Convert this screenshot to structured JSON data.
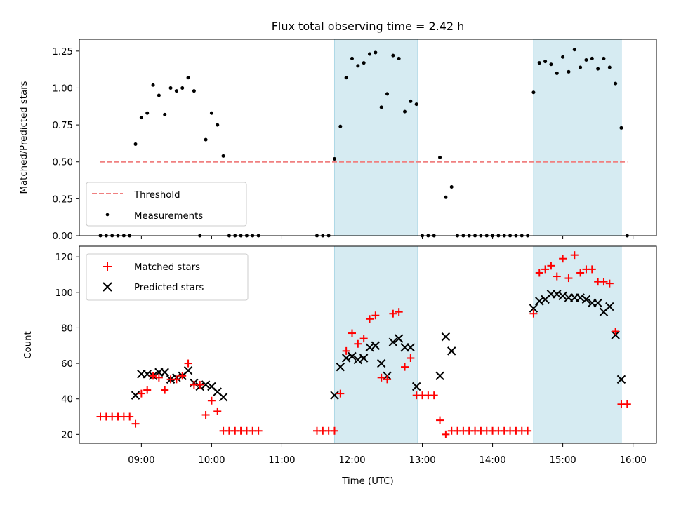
{
  "chart_data": [
    {
      "type": "scatter",
      "title": "Flux total observing time = 2.42 h",
      "xlabel": "",
      "ylabel": "Matched/Predicted stars",
      "xlim": [
        "08:07",
        "16:20"
      ],
      "ylim": [
        0,
        1.33
      ],
      "yticks": [
        0.0,
        0.25,
        0.5,
        0.75,
        1.0,
        1.25
      ],
      "ytick_labels": [
        "0.00",
        "0.25",
        "0.50",
        "0.75",
        "1.00",
        "1.25"
      ],
      "shaded_regions": [
        [
          "11:45",
          "12:56"
        ],
        [
          "14:35",
          "15:50"
        ]
      ],
      "threshold": {
        "name": "Threshold",
        "value": 0.5,
        "x_range": [
          "08:25",
          "15:55"
        ],
        "color": "#f08080",
        "style": "dashed"
      },
      "legend": {
        "position": "lower-left",
        "entries": [
          "Threshold",
          "Measurements"
        ]
      },
      "series": [
        {
          "name": "Measurements",
          "color": "#000000",
          "marker": "dot",
          "points": [
            [
              "08:25",
              0
            ],
            [
              "08:30",
              0
            ],
            [
              "08:35",
              0
            ],
            [
              "08:40",
              0
            ],
            [
              "08:45",
              0
            ],
            [
              "08:50",
              0
            ],
            [
              "08:55",
              0.62
            ],
            [
              "09:00",
              0.8
            ],
            [
              "09:05",
              0.83
            ],
            [
              "09:10",
              1.02
            ],
            [
              "09:15",
              0.95
            ],
            [
              "09:20",
              0.82
            ],
            [
              "09:25",
              1.0
            ],
            [
              "09:30",
              0.98
            ],
            [
              "09:35",
              1.0
            ],
            [
              "09:40",
              1.07
            ],
            [
              "09:45",
              0.98
            ],
            [
              "09:50",
              0
            ],
            [
              "09:55",
              0.65
            ],
            [
              "10:00",
              0.83
            ],
            [
              "10:05",
              0.75
            ],
            [
              "10:10",
              0.54
            ],
            [
              "10:15",
              0
            ],
            [
              "10:20",
              0
            ],
            [
              "10:25",
              0
            ],
            [
              "10:30",
              0
            ],
            [
              "10:35",
              0
            ],
            [
              "10:40",
              0
            ],
            [
              "11:30",
              0
            ],
            [
              "11:35",
              0
            ],
            [
              "11:40",
              0
            ],
            [
              "11:45",
              0.52
            ],
            [
              "11:50",
              0.74
            ],
            [
              "11:55",
              1.07
            ],
            [
              "12:00",
              1.2
            ],
            [
              "12:05",
              1.15
            ],
            [
              "12:10",
              1.17
            ],
            [
              "12:15",
              1.23
            ],
            [
              "12:20",
              1.24
            ],
            [
              "12:25",
              0.87
            ],
            [
              "12:30",
              0.96
            ],
            [
              "12:35",
              1.22
            ],
            [
              "12:40",
              1.2
            ],
            [
              "12:45",
              0.84
            ],
            [
              "12:50",
              0.91
            ],
            [
              "12:55",
              0.89
            ],
            [
              "13:00",
              0
            ],
            [
              "13:05",
              0
            ],
            [
              "13:10",
              0
            ],
            [
              "13:15",
              0.53
            ],
            [
              "13:20",
              0.26
            ],
            [
              "13:25",
              0.33
            ],
            [
              "13:30",
              0
            ],
            [
              "13:35",
              0
            ],
            [
              "13:40",
              0
            ],
            [
              "13:45",
              0
            ],
            [
              "13:50",
              0
            ],
            [
              "13:55",
              0
            ],
            [
              "14:00",
              0
            ],
            [
              "14:05",
              0
            ],
            [
              "14:10",
              0
            ],
            [
              "14:15",
              0
            ],
            [
              "14:20",
              0
            ],
            [
              "14:25",
              0
            ],
            [
              "14:30",
              0
            ],
            [
              "14:35",
              0.97
            ],
            [
              "14:40",
              1.17
            ],
            [
              "14:45",
              1.18
            ],
            [
              "14:50",
              1.16
            ],
            [
              "14:55",
              1.1
            ],
            [
              "15:00",
              1.21
            ],
            [
              "15:05",
              1.11
            ],
            [
              "15:10",
              1.26
            ],
            [
              "15:15",
              1.14
            ],
            [
              "15:20",
              1.19
            ],
            [
              "15:25",
              1.2
            ],
            [
              "15:30",
              1.13
            ],
            [
              "15:35",
              1.2
            ],
            [
              "15:40",
              1.14
            ],
            [
              "15:45",
              1.03
            ],
            [
              "15:50",
              0.73
            ],
            [
              "15:55",
              0
            ]
          ]
        }
      ]
    },
    {
      "type": "scatter",
      "title": "",
      "xlabel": "Time (UTC)",
      "ylabel": "Count",
      "xlim": [
        "08:07",
        "16:20"
      ],
      "ylim": [
        15,
        126
      ],
      "yticks": [
        20,
        40,
        60,
        80,
        100,
        120
      ],
      "xticks": [
        "09:00",
        "10:00",
        "11:00",
        "12:00",
        "13:00",
        "14:00",
        "15:00",
        "16:00"
      ],
      "shaded_regions": [
        [
          "11:45",
          "12:56"
        ],
        [
          "14:35",
          "15:50"
        ]
      ],
      "legend": {
        "position": "top-left",
        "entries": [
          "Matched stars",
          "Predicted stars"
        ]
      },
      "series": [
        {
          "name": "Matched stars",
          "color": "#ff0000",
          "marker": "plus",
          "points": [
            [
              "08:25",
              30
            ],
            [
              "08:30",
              30
            ],
            [
              "08:35",
              30
            ],
            [
              "08:40",
              30
            ],
            [
              "08:45",
              30
            ],
            [
              "08:50",
              30
            ],
            [
              "08:55",
              26
            ],
            [
              "09:00",
              43
            ],
            [
              "09:05",
              45
            ],
            [
              "09:10",
              53
            ],
            [
              "09:15",
              52
            ],
            [
              "09:20",
              45
            ],
            [
              "09:25",
              51
            ],
            [
              "09:30",
              51
            ],
            [
              "09:35",
              53
            ],
            [
              "09:40",
              60
            ],
            [
              "09:45",
              48
            ],
            [
              "09:50",
              48
            ],
            [
              "09:55",
              31
            ],
            [
              "10:00",
              39
            ],
            [
              "10:05",
              33
            ],
            [
              "10:10",
              22
            ],
            [
              "10:15",
              22
            ],
            [
              "10:20",
              22
            ],
            [
              "10:25",
              22
            ],
            [
              "10:30",
              22
            ],
            [
              "10:35",
              22
            ],
            [
              "10:40",
              22
            ],
            [
              "11:30",
              22
            ],
            [
              "11:35",
              22
            ],
            [
              "11:40",
              22
            ],
            [
              "11:45",
              22
            ],
            [
              "11:50",
              43
            ],
            [
              "11:55",
              67
            ],
            [
              "12:00",
              77
            ],
            [
              "12:05",
              71
            ],
            [
              "12:10",
              74
            ],
            [
              "12:15",
              85
            ],
            [
              "12:20",
              87
            ],
            [
              "12:25",
              52
            ],
            [
              "12:30",
              51
            ],
            [
              "12:35",
              88
            ],
            [
              "12:40",
              89
            ],
            [
              "12:45",
              58
            ],
            [
              "12:50",
              63
            ],
            [
              "12:55",
              42
            ],
            [
              "13:00",
              42
            ],
            [
              "13:05",
              42
            ],
            [
              "13:10",
              42
            ],
            [
              "13:15",
              28
            ],
            [
              "13:20",
              20
            ],
            [
              "13:25",
              22
            ],
            [
              "13:30",
              22
            ],
            [
              "13:35",
              22
            ],
            [
              "13:40",
              22
            ],
            [
              "13:45",
              22
            ],
            [
              "13:50",
              22
            ],
            [
              "13:55",
              22
            ],
            [
              "14:00",
              22
            ],
            [
              "14:05",
              22
            ],
            [
              "14:10",
              22
            ],
            [
              "14:15",
              22
            ],
            [
              "14:20",
              22
            ],
            [
              "14:25",
              22
            ],
            [
              "14:30",
              22
            ],
            [
              "14:35",
              88
            ],
            [
              "14:40",
              111
            ],
            [
              "14:45",
              113
            ],
            [
              "14:50",
              115
            ],
            [
              "14:55",
              109
            ],
            [
              "15:00",
              119
            ],
            [
              "15:05",
              108
            ],
            [
              "15:10",
              121
            ],
            [
              "15:15",
              111
            ],
            [
              "15:20",
              113
            ],
            [
              "15:25",
              113
            ],
            [
              "15:30",
              106
            ],
            [
              "15:35",
              106
            ],
            [
              "15:40",
              105
            ],
            [
              "15:45",
              78
            ],
            [
              "15:50",
              37
            ],
            [
              "15:55",
              37
            ]
          ]
        },
        {
          "name": "Predicted stars",
          "color": "#000000",
          "marker": "x",
          "points": [
            [
              "08:55",
              42
            ],
            [
              "09:00",
              54
            ],
            [
              "09:05",
              54
            ],
            [
              "09:10",
              53
            ],
            [
              "09:15",
              55
            ],
            [
              "09:20",
              55
            ],
            [
              "09:25",
              51
            ],
            [
              "09:30",
              52
            ],
            [
              "09:35",
              53
            ],
            [
              "09:40",
              56
            ],
            [
              "09:45",
              49
            ],
            [
              "09:50",
              47
            ],
            [
              "09:55",
              48
            ],
            [
              "10:00",
              47
            ],
            [
              "10:05",
              44
            ],
            [
              "10:10",
              41
            ],
            [
              "11:45",
              42
            ],
            [
              "11:50",
              58
            ],
            [
              "11:55",
              63
            ],
            [
              "12:00",
              64
            ],
            [
              "12:05",
              62
            ],
            [
              "12:10",
              63
            ],
            [
              "12:15",
              69
            ],
            [
              "12:20",
              70
            ],
            [
              "12:25",
              60
            ],
            [
              "12:30",
              53
            ],
            [
              "12:35",
              72
            ],
            [
              "12:40",
              74
            ],
            [
              "12:45",
              69
            ],
            [
              "12:50",
              69
            ],
            [
              "12:55",
              47
            ],
            [
              "13:15",
              53
            ],
            [
              "13:20",
              75
            ],
            [
              "13:25",
              67
            ],
            [
              "14:35",
              91
            ],
            [
              "14:40",
              95
            ],
            [
              "14:45",
              96
            ],
            [
              "14:50",
              99
            ],
            [
              "14:55",
              99
            ],
            [
              "15:00",
              98
            ],
            [
              "15:05",
              97
            ],
            [
              "15:10",
              97
            ],
            [
              "15:15",
              97
            ],
            [
              "15:20",
              96
            ],
            [
              "15:25",
              94
            ],
            [
              "15:30",
              94
            ],
            [
              "15:35",
              89
            ],
            [
              "15:40",
              92
            ],
            [
              "15:45",
              76
            ],
            [
              "15:50",
              51
            ]
          ]
        }
      ]
    }
  ],
  "colors": {
    "shade": "#add8e6",
    "threshold": "#f08080",
    "matched": "#ff0000",
    "predicted": "#000000",
    "measurements": "#000000"
  }
}
